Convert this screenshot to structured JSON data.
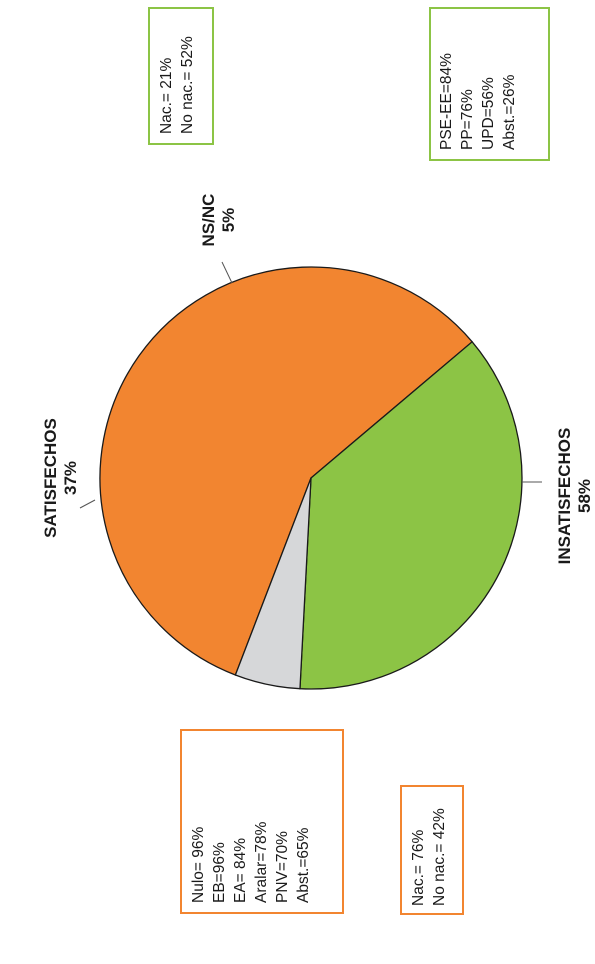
{
  "chart_data": {
    "type": "pie",
    "orientation": "rotated 90° counter-clockwise",
    "slices": [
      {
        "label": "INSATISFECHOS",
        "value": 58,
        "value_label": "58%",
        "color": "#f28530"
      },
      {
        "label": "SATISFECHOS",
        "value": 37,
        "value_label": "37%",
        "color": "#8cc445"
      },
      {
        "label": "NS/NC",
        "value": 5,
        "value_label": "5%",
        "color": "#d6d7d9"
      }
    ],
    "annotations": {
      "satisfied_by_party": {
        "border_color": "#8cc445",
        "lines": [
          "PSE-EE=84%",
          "PP=76%",
          "UPD=56%",
          "Abst.=26%"
        ]
      },
      "satisfied_by_identity": {
        "border_color": "#8cc445",
        "lines": [
          "Nac.= 21%",
          "No nac.= 52%"
        ]
      },
      "unsatisfied_by_party": {
        "border_color": "#f28530",
        "lines": [
          "Nulo= 96%",
          "EB=96%",
          "EA= 84%",
          "Aralar=78%",
          "PNV=70%",
          "Abst.=65%"
        ]
      },
      "unsatisfied_by_identity": {
        "border_color": "#f28530",
        "lines": [
          "Nac.= 76%",
          "No nac.= 42%"
        ]
      }
    }
  }
}
